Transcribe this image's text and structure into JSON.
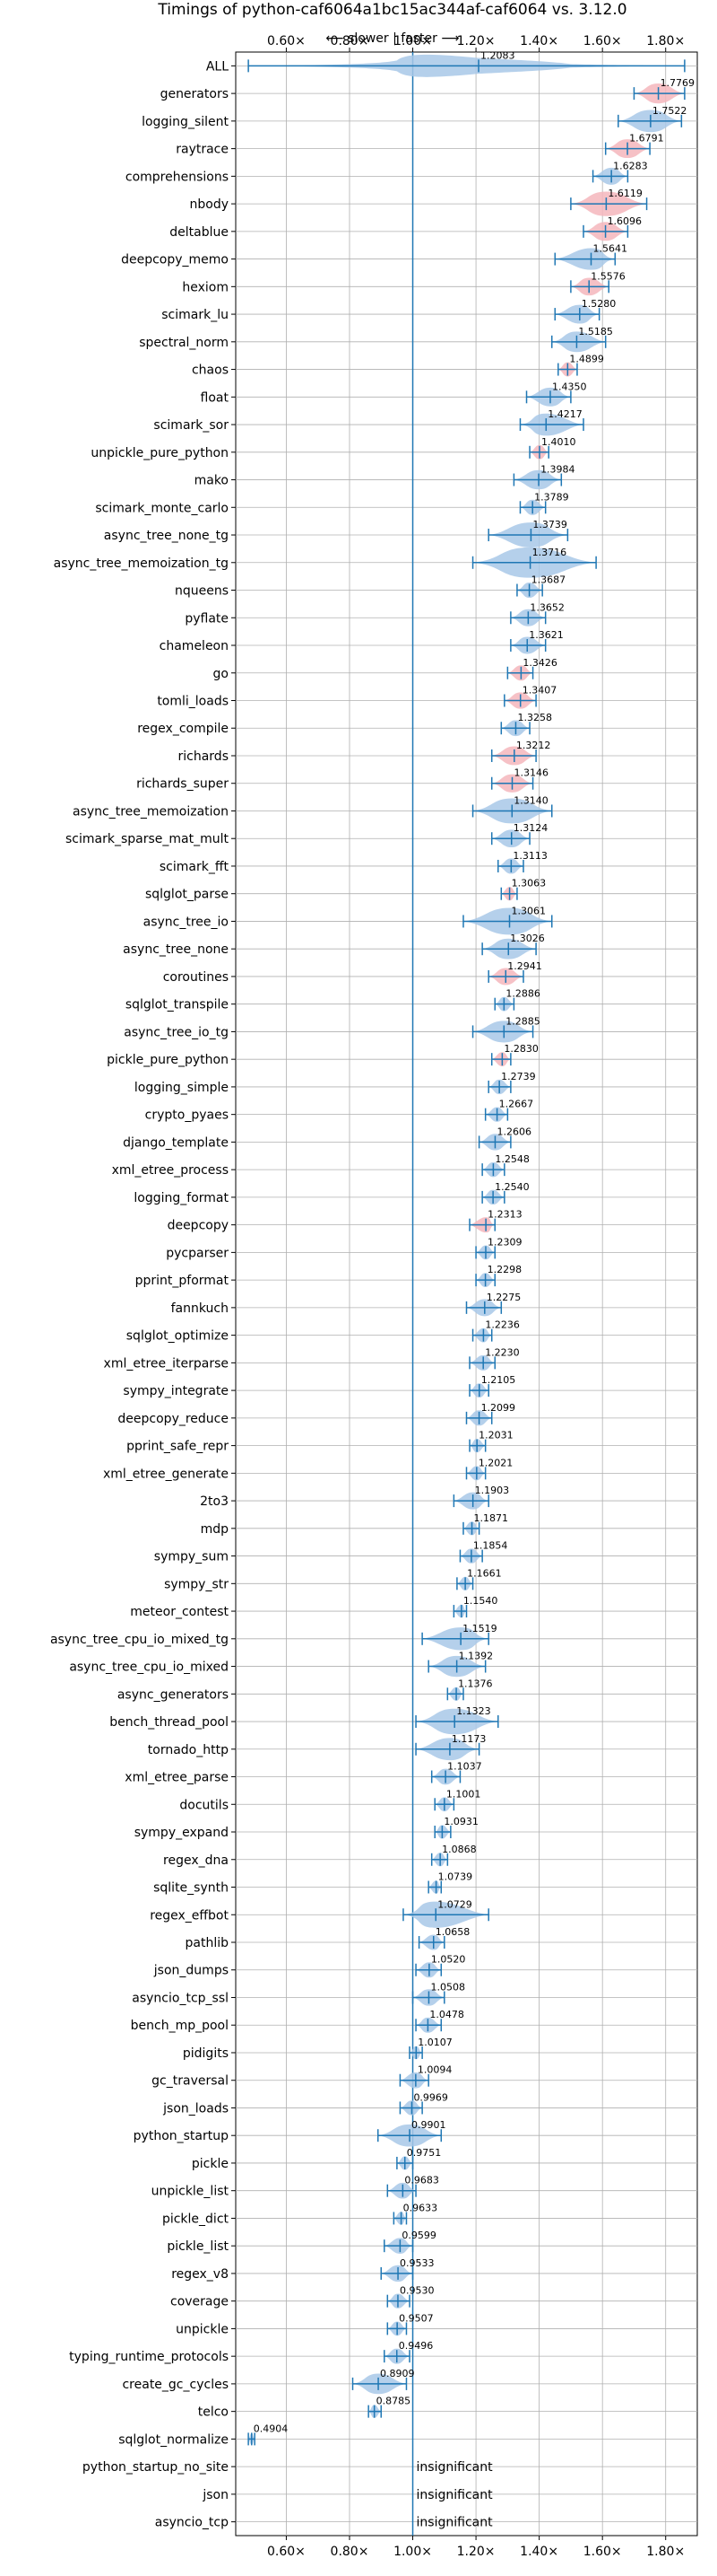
{
  "chart_data": {
    "type": "violin",
    "title": "Timings of python-caf6064a1bc15ac344af-caf6064 vs. 3.12.0",
    "subtitle": "⟵ slower | faster ⟶",
    "xlim": [
      0.44,
      1.9
    ],
    "xticks": [
      "0.60×",
      "0.80×",
      "1.00×",
      "1.20×",
      "1.40×",
      "1.60×",
      "1.80×"
    ],
    "xtick_values": [
      0.6,
      0.8,
      1.0,
      1.2,
      1.4,
      1.6,
      1.8
    ],
    "reference_line": 1.0,
    "grid": true,
    "colors": {
      "faster": "#a8c8e8",
      "slower": "#f4b6bc",
      "line": "#1f77b4",
      "grid": "#b0b0b0"
    },
    "insignificant_text": "insignificant",
    "items": [
      {
        "name": "ALL",
        "value": 1.2083,
        "label": "1.2083",
        "lo": 0.48,
        "hi": 1.86,
        "color": "faster",
        "shape": "all"
      },
      {
        "name": "generators",
        "value": 1.7769,
        "label": "1.7769",
        "lo": 1.7,
        "hi": 1.86,
        "color": "slower"
      },
      {
        "name": "logging_silent",
        "value": 1.7522,
        "label": "1.7522",
        "lo": 1.65,
        "hi": 1.85,
        "color": "faster"
      },
      {
        "name": "raytrace",
        "value": 1.6791,
        "label": "1.6791",
        "lo": 1.61,
        "hi": 1.75,
        "color": "slower"
      },
      {
        "name": "comprehensions",
        "value": 1.6283,
        "label": "1.6283",
        "lo": 1.57,
        "hi": 1.68,
        "color": "faster"
      },
      {
        "name": "nbody",
        "value": 1.6119,
        "label": "1.6119",
        "lo": 1.5,
        "hi": 1.74,
        "color": "slower"
      },
      {
        "name": "deltablue",
        "value": 1.6096,
        "label": "1.6096",
        "lo": 1.54,
        "hi": 1.68,
        "color": "slower"
      },
      {
        "name": "deepcopy_memo",
        "value": 1.5641,
        "label": "1.5641",
        "lo": 1.45,
        "hi": 1.64,
        "color": "faster"
      },
      {
        "name": "hexiom",
        "value": 1.5576,
        "label": "1.5576",
        "lo": 1.5,
        "hi": 1.62,
        "color": "slower"
      },
      {
        "name": "scimark_lu",
        "value": 1.528,
        "label": "1.5280",
        "lo": 1.45,
        "hi": 1.59,
        "color": "faster"
      },
      {
        "name": "spectral_norm",
        "value": 1.5185,
        "label": "1.5185",
        "lo": 1.44,
        "hi": 1.61,
        "color": "faster"
      },
      {
        "name": "chaos",
        "value": 1.4899,
        "label": "1.4899",
        "lo": 1.46,
        "hi": 1.52,
        "color": "slower"
      },
      {
        "name": "float",
        "value": 1.435,
        "label": "1.4350",
        "lo": 1.36,
        "hi": 1.5,
        "color": "faster"
      },
      {
        "name": "scimark_sor",
        "value": 1.4217,
        "label": "1.4217",
        "lo": 1.34,
        "hi": 1.54,
        "color": "faster"
      },
      {
        "name": "unpickle_pure_python",
        "value": 1.401,
        "label": "1.4010",
        "lo": 1.37,
        "hi": 1.43,
        "color": "slower"
      },
      {
        "name": "mako",
        "value": 1.3984,
        "label": "1.3984",
        "lo": 1.32,
        "hi": 1.47,
        "color": "faster"
      },
      {
        "name": "scimark_monte_carlo",
        "value": 1.3789,
        "label": "1.3789",
        "lo": 1.34,
        "hi": 1.42,
        "color": "faster"
      },
      {
        "name": "async_tree_none_tg",
        "value": 1.3739,
        "label": "1.3739",
        "lo": 1.24,
        "hi": 1.49,
        "color": "faster"
      },
      {
        "name": "async_tree_memoization_tg",
        "value": 1.3716,
        "label": "1.3716",
        "lo": 1.19,
        "hi": 1.58,
        "color": "faster"
      },
      {
        "name": "nqueens",
        "value": 1.3687,
        "label": "1.3687",
        "lo": 1.33,
        "hi": 1.41,
        "color": "faster"
      },
      {
        "name": "pyflate",
        "value": 1.3652,
        "label": "1.3652",
        "lo": 1.31,
        "hi": 1.42,
        "color": "faster"
      },
      {
        "name": "chameleon",
        "value": 1.3621,
        "label": "1.3621",
        "lo": 1.31,
        "hi": 1.42,
        "color": "faster"
      },
      {
        "name": "go",
        "value": 1.3426,
        "label": "1.3426",
        "lo": 1.3,
        "hi": 1.38,
        "color": "slower"
      },
      {
        "name": "tomli_loads",
        "value": 1.3407,
        "label": "1.3407",
        "lo": 1.29,
        "hi": 1.39,
        "color": "slower"
      },
      {
        "name": "regex_compile",
        "value": 1.3258,
        "label": "1.3258",
        "lo": 1.28,
        "hi": 1.37,
        "color": "faster"
      },
      {
        "name": "richards",
        "value": 1.3212,
        "label": "1.3212",
        "lo": 1.25,
        "hi": 1.39,
        "color": "slower"
      },
      {
        "name": "richards_super",
        "value": 1.3146,
        "label": "1.3146",
        "lo": 1.25,
        "hi": 1.38,
        "color": "slower"
      },
      {
        "name": "async_tree_memoization",
        "value": 1.314,
        "label": "1.3140",
        "lo": 1.19,
        "hi": 1.44,
        "color": "faster"
      },
      {
        "name": "scimark_sparse_mat_mult",
        "value": 1.3124,
        "label": "1.3124",
        "lo": 1.25,
        "hi": 1.37,
        "color": "faster"
      },
      {
        "name": "scimark_fft",
        "value": 1.3113,
        "label": "1.3113",
        "lo": 1.27,
        "hi": 1.35,
        "color": "faster"
      },
      {
        "name": "sqlglot_parse",
        "value": 1.3063,
        "label": "1.3063",
        "lo": 1.28,
        "hi": 1.33,
        "color": "slower"
      },
      {
        "name": "async_tree_io",
        "value": 1.3061,
        "label": "1.3061",
        "lo": 1.16,
        "hi": 1.44,
        "color": "faster"
      },
      {
        "name": "async_tree_none",
        "value": 1.3026,
        "label": "1.3026",
        "lo": 1.22,
        "hi": 1.39,
        "color": "faster"
      },
      {
        "name": "coroutines",
        "value": 1.2941,
        "label": "1.2941",
        "lo": 1.24,
        "hi": 1.35,
        "color": "slower"
      },
      {
        "name": "sqlglot_transpile",
        "value": 1.2886,
        "label": "1.2886",
        "lo": 1.26,
        "hi": 1.32,
        "color": "faster"
      },
      {
        "name": "async_tree_io_tg",
        "value": 1.2885,
        "label": "1.2885",
        "lo": 1.19,
        "hi": 1.38,
        "color": "faster"
      },
      {
        "name": "pickle_pure_python",
        "value": 1.283,
        "label": "1.2830",
        "lo": 1.25,
        "hi": 1.31,
        "color": "slower"
      },
      {
        "name": "logging_simple",
        "value": 1.2739,
        "label": "1.2739",
        "lo": 1.24,
        "hi": 1.31,
        "color": "faster"
      },
      {
        "name": "crypto_pyaes",
        "value": 1.2667,
        "label": "1.2667",
        "lo": 1.23,
        "hi": 1.3,
        "color": "faster"
      },
      {
        "name": "django_template",
        "value": 1.2606,
        "label": "1.2606",
        "lo": 1.21,
        "hi": 1.31,
        "color": "faster"
      },
      {
        "name": "xml_etree_process",
        "value": 1.2548,
        "label": "1.2548",
        "lo": 1.22,
        "hi": 1.29,
        "color": "faster"
      },
      {
        "name": "logging_format",
        "value": 1.254,
        "label": "1.2540",
        "lo": 1.22,
        "hi": 1.29,
        "color": "faster"
      },
      {
        "name": "deepcopy",
        "value": 1.2313,
        "label": "1.2313",
        "lo": 1.18,
        "hi": 1.26,
        "color": "slower"
      },
      {
        "name": "pycparser",
        "value": 1.2309,
        "label": "1.2309",
        "lo": 1.2,
        "hi": 1.26,
        "color": "faster"
      },
      {
        "name": "pprint_pformat",
        "value": 1.2298,
        "label": "1.2298",
        "lo": 1.2,
        "hi": 1.26,
        "color": "faster"
      },
      {
        "name": "fannkuch",
        "value": 1.2275,
        "label": "1.2275",
        "lo": 1.17,
        "hi": 1.28,
        "color": "faster"
      },
      {
        "name": "sqlglot_optimize",
        "value": 1.2236,
        "label": "1.2236",
        "lo": 1.19,
        "hi": 1.25,
        "color": "faster"
      },
      {
        "name": "xml_etree_iterparse",
        "value": 1.223,
        "label": "1.2230",
        "lo": 1.18,
        "hi": 1.26,
        "color": "faster"
      },
      {
        "name": "sympy_integrate",
        "value": 1.2105,
        "label": "1.2105",
        "lo": 1.18,
        "hi": 1.24,
        "color": "faster"
      },
      {
        "name": "deepcopy_reduce",
        "value": 1.2099,
        "label": "1.2099",
        "lo": 1.17,
        "hi": 1.25,
        "color": "faster"
      },
      {
        "name": "pprint_safe_repr",
        "value": 1.2031,
        "label": "1.2031",
        "lo": 1.18,
        "hi": 1.23,
        "color": "faster"
      },
      {
        "name": "xml_etree_generate",
        "value": 1.2021,
        "label": "1.2021",
        "lo": 1.17,
        "hi": 1.23,
        "color": "faster"
      },
      {
        "name": "2to3",
        "value": 1.1903,
        "label": "1.1903",
        "lo": 1.13,
        "hi": 1.24,
        "color": "faster"
      },
      {
        "name": "mdp",
        "value": 1.1871,
        "label": "1.1871",
        "lo": 1.16,
        "hi": 1.21,
        "color": "faster"
      },
      {
        "name": "sympy_sum",
        "value": 1.1854,
        "label": "1.1854",
        "lo": 1.15,
        "hi": 1.22,
        "color": "faster"
      },
      {
        "name": "sympy_str",
        "value": 1.1661,
        "label": "1.1661",
        "lo": 1.14,
        "hi": 1.19,
        "color": "faster"
      },
      {
        "name": "meteor_contest",
        "value": 1.154,
        "label": "1.1540",
        "lo": 1.13,
        "hi": 1.17,
        "color": "faster"
      },
      {
        "name": "async_tree_cpu_io_mixed_tg",
        "value": 1.1519,
        "label": "1.1519",
        "lo": 1.03,
        "hi": 1.24,
        "color": "faster"
      },
      {
        "name": "async_tree_cpu_io_mixed",
        "value": 1.1392,
        "label": "1.1392",
        "lo": 1.05,
        "hi": 1.23,
        "color": "faster"
      },
      {
        "name": "async_generators",
        "value": 1.1376,
        "label": "1.1376",
        "lo": 1.11,
        "hi": 1.16,
        "color": "faster"
      },
      {
        "name": "bench_thread_pool",
        "value": 1.1323,
        "label": "1.1323",
        "lo": 1.01,
        "hi": 1.27,
        "color": "faster"
      },
      {
        "name": "tornado_http",
        "value": 1.1173,
        "label": "1.1173",
        "lo": 1.01,
        "hi": 1.21,
        "color": "faster"
      },
      {
        "name": "xml_etree_parse",
        "value": 1.1037,
        "label": "1.1037",
        "lo": 1.06,
        "hi": 1.15,
        "color": "faster"
      },
      {
        "name": "docutils",
        "value": 1.1001,
        "label": "1.1001",
        "lo": 1.07,
        "hi": 1.13,
        "color": "faster"
      },
      {
        "name": "sympy_expand",
        "value": 1.0931,
        "label": "1.0931",
        "lo": 1.07,
        "hi": 1.12,
        "color": "faster"
      },
      {
        "name": "regex_dna",
        "value": 1.0868,
        "label": "1.0868",
        "lo": 1.06,
        "hi": 1.11,
        "color": "faster"
      },
      {
        "name": "sqlite_synth",
        "value": 1.0739,
        "label": "1.0739",
        "lo": 1.05,
        "hi": 1.09,
        "color": "faster"
      },
      {
        "name": "regex_effbot",
        "value": 1.0729,
        "label": "1.0729",
        "lo": 0.97,
        "hi": 1.24,
        "color": "faster"
      },
      {
        "name": "pathlib",
        "value": 1.0658,
        "label": "1.0658",
        "lo": 1.02,
        "hi": 1.1,
        "color": "faster"
      },
      {
        "name": "json_dumps",
        "value": 1.052,
        "label": "1.0520",
        "lo": 1.01,
        "hi": 1.09,
        "color": "faster"
      },
      {
        "name": "asyncio_tcp_ssl",
        "value": 1.0508,
        "label": "1.0508",
        "lo": 1.0,
        "hi": 1.1,
        "color": "faster"
      },
      {
        "name": "bench_mp_pool",
        "value": 1.0478,
        "label": "1.0478",
        "lo": 1.01,
        "hi": 1.09,
        "color": "faster"
      },
      {
        "name": "pidigits",
        "value": 1.0107,
        "label": "1.0107",
        "lo": 0.99,
        "hi": 1.03,
        "color": "faster"
      },
      {
        "name": "gc_traversal",
        "value": 1.0094,
        "label": "1.0094",
        "lo": 0.96,
        "hi": 1.05,
        "color": "faster"
      },
      {
        "name": "json_loads",
        "value": 0.9969,
        "label": "0.9969",
        "lo": 0.96,
        "hi": 1.03,
        "color": "faster"
      },
      {
        "name": "python_startup",
        "value": 0.9901,
        "label": "0.9901",
        "lo": 0.89,
        "hi": 1.09,
        "color": "faster"
      },
      {
        "name": "pickle",
        "value": 0.9751,
        "label": "0.9751",
        "lo": 0.95,
        "hi": 1.0,
        "color": "faster"
      },
      {
        "name": "unpickle_list",
        "value": 0.9683,
        "label": "0.9683",
        "lo": 0.92,
        "hi": 1.01,
        "color": "faster"
      },
      {
        "name": "pickle_dict",
        "value": 0.9633,
        "label": "0.9633",
        "lo": 0.94,
        "hi": 0.98,
        "color": "faster"
      },
      {
        "name": "pickle_list",
        "value": 0.9599,
        "label": "0.9599",
        "lo": 0.91,
        "hi": 1.0,
        "color": "faster"
      },
      {
        "name": "regex_v8",
        "value": 0.9533,
        "label": "0.9533",
        "lo": 0.9,
        "hi": 1.0,
        "color": "faster"
      },
      {
        "name": "coverage",
        "value": 0.953,
        "label": "0.9530",
        "lo": 0.92,
        "hi": 0.99,
        "color": "faster"
      },
      {
        "name": "unpickle",
        "value": 0.9507,
        "label": "0.9507",
        "lo": 0.92,
        "hi": 0.98,
        "color": "faster"
      },
      {
        "name": "typing_runtime_protocols",
        "value": 0.9496,
        "label": "0.9496",
        "lo": 0.91,
        "hi": 0.99,
        "color": "faster"
      },
      {
        "name": "create_gc_cycles",
        "value": 0.8909,
        "label": "0.8909",
        "lo": 0.81,
        "hi": 0.98,
        "color": "faster"
      },
      {
        "name": "telco",
        "value": 0.8785,
        "label": "0.8785",
        "lo": 0.86,
        "hi": 0.9,
        "color": "faster"
      },
      {
        "name": "sqlglot_normalize",
        "value": 0.4904,
        "label": "0.4904",
        "lo": 0.48,
        "hi": 0.5,
        "color": "faster"
      },
      {
        "name": "python_startup_no_site",
        "value": null,
        "label": "",
        "lo": null,
        "hi": null,
        "color": "faster",
        "insignificant": true
      },
      {
        "name": "json",
        "value": null,
        "label": "",
        "lo": null,
        "hi": null,
        "color": "faster",
        "insignificant": true
      },
      {
        "name": "asyncio_tcp",
        "value": null,
        "label": "",
        "lo": null,
        "hi": null,
        "color": "faster",
        "insignificant": true
      }
    ]
  }
}
